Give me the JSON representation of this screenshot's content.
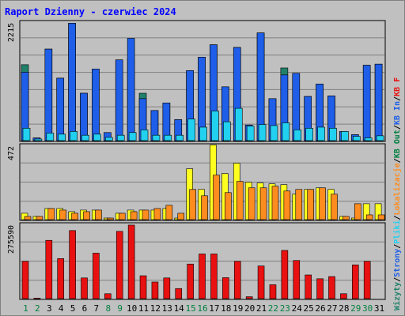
{
  "title": "Raport Dzienny -  czerwiec 2024",
  "colors": {
    "title": "#0000ff",
    "background": "#c0c0c0",
    "grid": "#808080",
    "axis_label": "#000000",
    "wizyty": "#20806a",
    "strony": "#1e5ee8",
    "pliki": "#22d0f0",
    "lokalizacje": "#ffff20",
    "kb_out": "#ff8c1e",
    "kb_in": "#e81010",
    "weekend_label": "#008040"
  },
  "chart_data": [
    {
      "type": "bar",
      "ymax_label": "2215",
      "ymax": 2215,
      "categories": [
        "1",
        "2",
        "3",
        "4",
        "5",
        "6",
        "7",
        "8",
        "9",
        "10",
        "11",
        "12",
        "13",
        "14",
        "15",
        "16",
        "17",
        "18",
        "19",
        "20",
        "21",
        "22",
        "23",
        "24",
        "25",
        "26",
        "27",
        "28",
        "29",
        "30",
        "31"
      ],
      "weekend_days": [
        "1",
        "2",
        "8",
        "9",
        "15",
        "16",
        "22",
        "23",
        "29",
        "30"
      ],
      "series": [
        {
          "name": "Wizyty",
          "values": [
            1410,
            50,
            1700,
            1160,
            2180,
            880,
            1330,
            150,
            1500,
            1520,
            880,
            560,
            700,
            390,
            1300,
            1550,
            1780,
            1000,
            1730,
            290,
            2000,
            780,
            1350,
            1250,
            820,
            1050,
            830,
            170,
            110,
            1400,
            1420
          ]
        },
        {
          "name": "Strony",
          "values": [
            1270,
            50,
            1700,
            1160,
            2180,
            880,
            1330,
            150,
            1500,
            1900,
            780,
            560,
            700,
            390,
            1300,
            1550,
            1780,
            1000,
            1730,
            290,
            2000,
            780,
            1220,
            1250,
            820,
            1050,
            830,
            170,
            110,
            1400,
            1420
          ]
        },
        {
          "name": "Pliki",
          "values": [
            230,
            30,
            140,
            120,
            170,
            100,
            120,
            60,
            100,
            150,
            200,
            100,
            100,
            100,
            400,
            250,
            550,
            350,
            600,
            270,
            300,
            280,
            330,
            200,
            230,
            250,
            230,
            170,
            80,
            50,
            90
          ]
        }
      ],
      "legend": [
        "Wizyty",
        "Strony",
        "Pliki"
      ]
    },
    {
      "type": "bar",
      "ymax_label": "472",
      "ymax": 472,
      "categories": [
        "1",
        "2",
        "3",
        "4",
        "5",
        "6",
        "7",
        "8",
        "9",
        "10",
        "11",
        "12",
        "13",
        "14",
        "15",
        "16",
        "17",
        "18",
        "19",
        "20",
        "21",
        "22",
        "23",
        "24",
        "25",
        "26",
        "27",
        "28",
        "29",
        "30",
        "31"
      ],
      "series": [
        {
          "name": "Lokalizacje",
          "values": [
            40,
            20,
            70,
            70,
            50,
            60,
            60,
            10,
            40,
            60,
            60,
            60,
            70,
            10,
            320,
            190,
            470,
            290,
            355,
            235,
            230,
            225,
            220,
            160,
            190,
            200,
            190,
            20,
            10,
            100,
            100
          ]
        },
        {
          "name": "KB Out",
          "values": [
            20,
            20,
            70,
            60,
            40,
            50,
            60,
            10,
            40,
            50,
            60,
            70,
            90,
            40,
            190,
            150,
            280,
            170,
            240,
            200,
            200,
            210,
            180,
            190,
            190,
            200,
            160,
            20,
            100,
            30,
            30
          ]
        }
      ],
      "legend": [
        "Lokalizacje",
        "KB Out"
      ]
    },
    {
      "type": "bar",
      "ymax_label": "275590",
      "ymax": 275590,
      "categories": [
        "1",
        "2",
        "3",
        "4",
        "5",
        "6",
        "7",
        "8",
        "9",
        "10",
        "11",
        "12",
        "13",
        "14",
        "15",
        "16",
        "17",
        "18",
        "19",
        "20",
        "21",
        "22",
        "23",
        "24",
        "25",
        "26",
        "27",
        "28",
        "29",
        "30",
        "31"
      ],
      "series": [
        {
          "name": "KB In",
          "values": [
            0,
            0,
            0,
            0,
            0,
            0,
            0,
            0,
            0,
            0,
            0,
            0,
            0,
            0,
            0,
            0,
            0,
            0,
            0,
            0,
            0,
            0,
            0,
            0,
            0,
            0,
            0,
            0,
            0,
            0,
            0
          ]
        },
        {
          "name": "KB F",
          "values": [
            137000,
            2000,
            214000,
            147000,
            250000,
            76000,
            167000,
            18000,
            247000,
            270000,
            84000,
            61000,
            76000,
            37000,
            127000,
            164000,
            164000,
            77000,
            137000,
            7000,
            120000,
            51000,
            177000,
            140000,
            87000,
            73000,
            81000,
            18000,
            124000,
            137000,
            0
          ]
        }
      ],
      "legend": [
        "KB In",
        "KB F"
      ]
    }
  ],
  "right_legend": [
    {
      "text": "Wizyty",
      "color": "#20806a"
    },
    {
      "text": "/",
      "color": "#000000"
    },
    {
      "text": "Strony",
      "color": "#1e5ee8"
    },
    {
      "text": "/",
      "color": "#000000"
    },
    {
      "text": "Pliki",
      "color": "#22d0f0"
    },
    {
      "text": "/",
      "color": "#000000"
    },
    {
      "text": "Lokalizacje",
      "color": "#ff8c1e"
    },
    {
      "text": "/",
      "color": "#000000"
    },
    {
      "text": "KB Out",
      "color": "#008040"
    },
    {
      "text": "/",
      "color": "#000000"
    },
    {
      "text": "KB In",
      "color": "#1e5ee8"
    },
    {
      "text": "/",
      "color": "#000000"
    },
    {
      "text": "KB F",
      "color": "#e81010"
    }
  ]
}
